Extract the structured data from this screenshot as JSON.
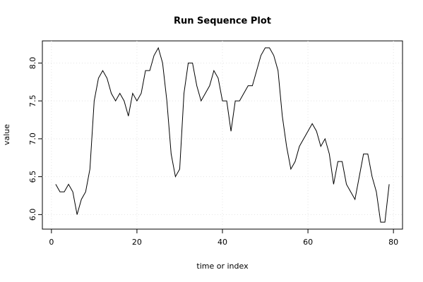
{
  "chart_data": {
    "type": "line",
    "title": "Run Sequence Plot",
    "x_label": "time or index",
    "y_label": "value",
    "x": [
      1,
      2,
      3,
      4,
      5,
      6,
      7,
      8,
      9,
      10,
      11,
      12,
      13,
      14,
      15,
      16,
      17,
      18,
      19,
      20,
      21,
      22,
      23,
      24,
      25,
      26,
      27,
      28,
      29,
      30,
      31,
      32,
      33,
      34,
      35,
      36,
      37,
      38,
      39,
      40,
      41,
      42,
      43,
      44,
      45,
      46,
      47,
      48,
      49,
      50,
      51,
      52,
      53,
      54,
      55,
      56,
      57,
      58,
      59,
      60,
      61,
      62,
      63,
      64,
      65,
      66,
      67,
      68,
      69,
      70,
      71,
      72,
      73,
      74,
      75,
      76,
      77,
      78,
      79
    ],
    "series": [
      {
        "name": "value",
        "color": "#000000",
        "values": [
          6.4,
          6.3,
          6.3,
          6.4,
          6.3,
          6.0,
          6.2,
          6.3,
          6.6,
          7.5,
          7.8,
          7.9,
          7.8,
          7.6,
          7.5,
          7.6,
          7.5,
          7.3,
          7.6,
          7.5,
          7.6,
          7.9,
          7.9,
          8.1,
          8.2,
          8.0,
          7.5,
          6.8,
          6.5,
          6.6,
          7.6,
          8.0,
          8.0,
          7.7,
          7.5,
          7.6,
          7.7,
          7.9,
          7.8,
          7.5,
          7.5,
          7.1,
          7.5,
          7.5,
          7.6,
          7.7,
          7.7,
          7.9,
          8.1,
          8.2,
          8.2,
          8.1,
          7.9,
          7.3,
          6.9,
          6.6,
          6.7,
          6.9,
          7.0,
          7.1,
          7.2,
          7.1,
          6.9,
          7.0,
          6.8,
          6.4,
          6.7,
          6.7,
          6.4,
          6.3,
          6.2,
          6.5,
          6.8,
          6.8,
          6.5,
          6.3,
          5.9,
          5.9,
          6.4
        ]
      }
    ],
    "xlim": [
      -2.12,
      82.12
    ],
    "xticks": [
      0,
      20,
      40,
      60,
      80
    ],
    "ylim": [
      5.808,
      8.292
    ],
    "yticks": [
      {
        "value": 6,
        "label": "6.0"
      },
      6.5,
      {
        "value": 7,
        "label": "7.0"
      },
      7.5,
      {
        "value": 8,
        "label": "8.0"
      }
    ],
    "grid": true
  }
}
